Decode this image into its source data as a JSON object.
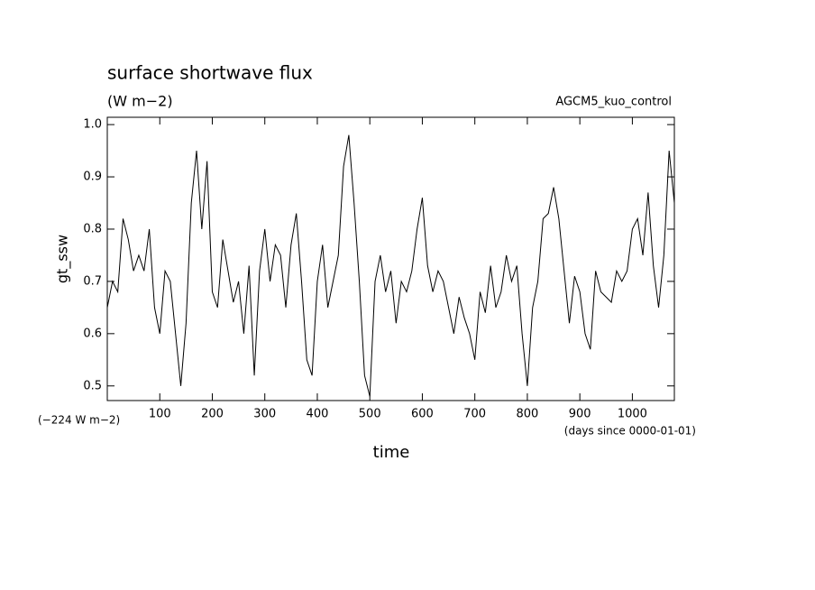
{
  "chart_data": {
    "type": "line",
    "title": "surface shortwave flux",
    "subtitle": "(W m−2)",
    "annotation": "AGCM5_kuo_control",
    "y_label": "gt_ssw",
    "x_label": "time",
    "y_offset_note": "(−224 W m−2)",
    "x_units_note": "(days since 0000-01-01)",
    "xlim": [
      0,
      1080
    ],
    "ylim": [
      0.472,
      1.014
    ],
    "xticks": [
      100,
      200,
      300,
      400,
      500,
      600,
      700,
      800,
      900,
      1000
    ],
    "yticks": [
      {
        "value": 0.5,
        "label": "0.5"
      },
      {
        "value": 0.6,
        "label": "0.6"
      },
      {
        "value": 0.7,
        "label": "0.7"
      },
      {
        "value": 0.8,
        "label": "0.8"
      },
      {
        "value": 0.9,
        "label": "0.9"
      },
      {
        "value": 1.0,
        "label": "1.0"
      }
    ],
    "grid": false,
    "x": [
      0,
      10,
      20,
      30,
      40,
      50,
      60,
      70,
      80,
      90,
      100,
      110,
      120,
      130,
      140,
      150,
      160,
      170,
      180,
      190,
      200,
      210,
      220,
      230,
      240,
      250,
      260,
      270,
      280,
      290,
      300,
      310,
      320,
      330,
      340,
      350,
      360,
      370,
      380,
      390,
      400,
      410,
      420,
      430,
      440,
      450,
      460,
      470,
      480,
      490,
      500,
      510,
      520,
      530,
      540,
      550,
      560,
      570,
      580,
      590,
      600,
      610,
      620,
      630,
      640,
      650,
      660,
      670,
      680,
      690,
      700,
      710,
      720,
      730,
      740,
      750,
      760,
      770,
      780,
      790,
      800,
      810,
      820,
      830,
      840,
      850,
      860,
      870,
      880,
      890,
      900,
      910,
      920,
      930,
      940,
      950,
      960,
      970,
      980,
      990,
      1000,
      1010,
      1020,
      1030,
      1040,
      1050,
      1060,
      1070,
      1080
    ],
    "series": [
      {
        "name": "gt_ssw",
        "color": "#000000",
        "values": [
          0.65,
          0.7,
          0.68,
          0.82,
          0.78,
          0.72,
          0.75,
          0.72,
          0.8,
          0.65,
          0.6,
          0.72,
          0.7,
          0.6,
          0.5,
          0.62,
          0.85,
          0.95,
          0.8,
          0.93,
          0.68,
          0.65,
          0.78,
          0.72,
          0.66,
          0.7,
          0.6,
          0.73,
          0.52,
          0.72,
          0.8,
          0.7,
          0.77,
          0.75,
          0.65,
          0.77,
          0.83,
          0.7,
          0.55,
          0.52,
          0.7,
          0.77,
          0.65,
          0.7,
          0.75,
          0.92,
          0.98,
          0.85,
          0.7,
          0.52,
          0.48,
          0.7,
          0.75,
          0.68,
          0.72,
          0.62,
          0.7,
          0.68,
          0.72,
          0.8,
          0.86,
          0.73,
          0.68,
          0.72,
          0.7,
          0.65,
          0.6,
          0.67,
          0.63,
          0.6,
          0.55,
          0.68,
          0.64,
          0.73,
          0.65,
          0.68,
          0.75,
          0.7,
          0.73,
          0.6,
          0.5,
          0.65,
          0.7,
          0.82,
          0.83,
          0.88,
          0.82,
          0.72,
          0.62,
          0.71,
          0.68,
          0.6,
          0.57,
          0.72,
          0.68,
          0.67,
          0.66,
          0.72,
          0.7,
          0.72,
          0.8,
          0.82,
          0.75,
          0.87,
          0.73,
          0.65,
          0.75,
          0.95,
          0.85
        ]
      }
    ]
  }
}
